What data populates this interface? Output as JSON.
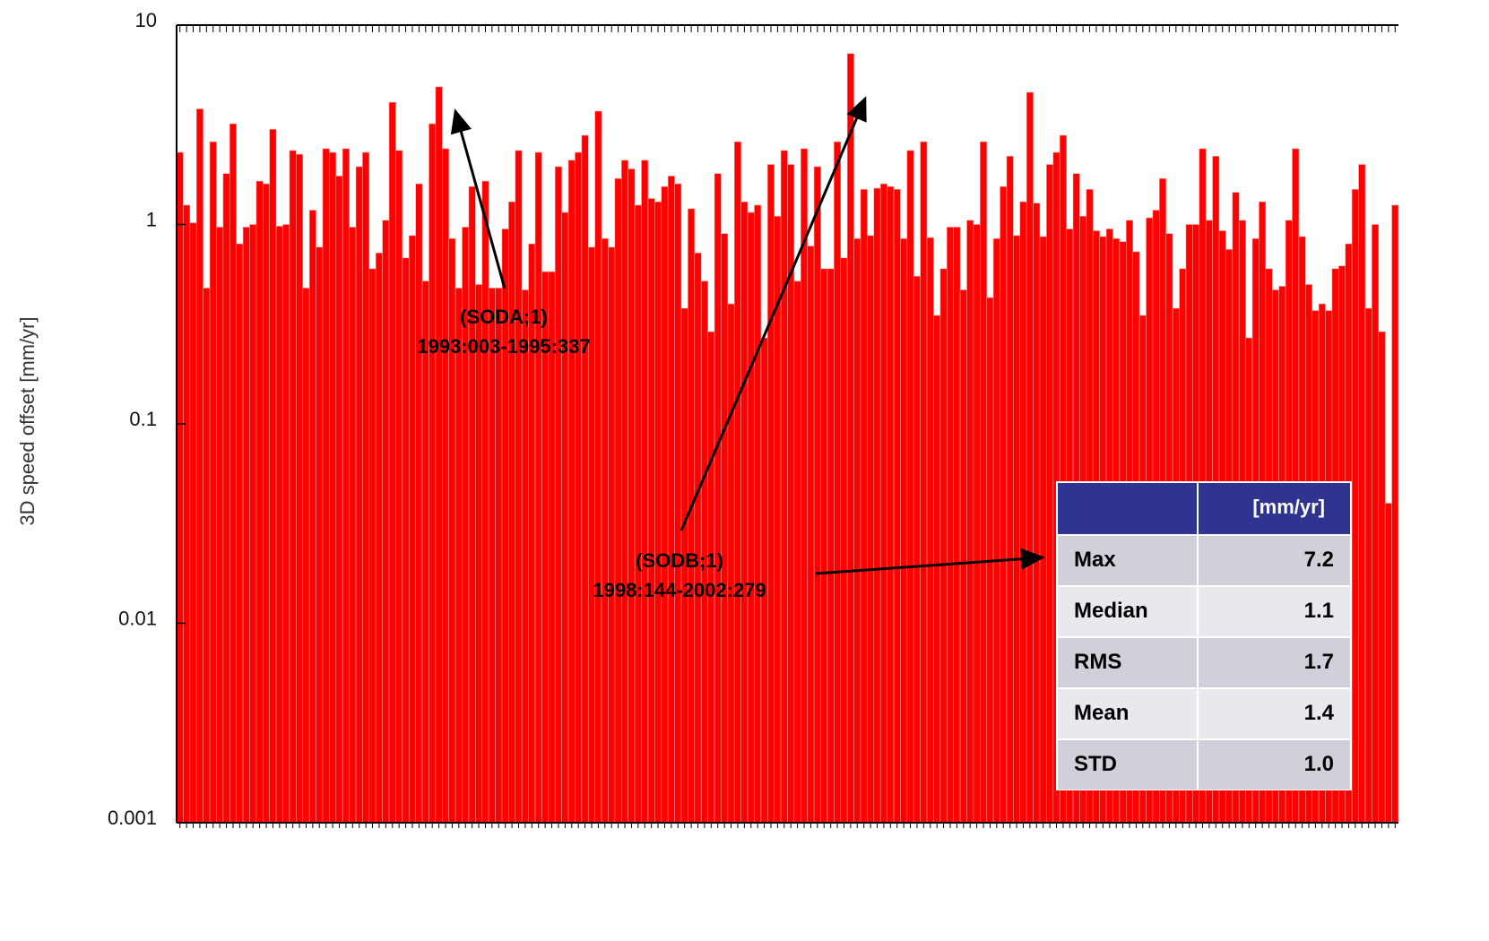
{
  "chart_data": {
    "type": "bar",
    "y_label": "3D speed offset [mm/yr]",
    "log_scale": true,
    "color": "#ff0000",
    "ylim": [
      0.001,
      10
    ],
    "yticks": [
      10,
      1,
      0.1,
      0.01,
      0.001
    ],
    "values": [
      2.3,
      1.25,
      1.02,
      3.8,
      0.48,
      2.6,
      0.97,
      1.8,
      3.2,
      0.8,
      0.97,
      1.0,
      1.65,
      1.6,
      3.0,
      0.98,
      1.0,
      2.35,
      2.25,
      0.48,
      1.18,
      0.77,
      2.4,
      2.3,
      1.75,
      2.4,
      0.97,
      1.95,
      2.3,
      0.6,
      0.72,
      1.05,
      4.1,
      2.35,
      0.68,
      0.88,
      1.6,
      0.52,
      3.2,
      4.9,
      2.4,
      0.85,
      0.48,
      0.97,
      1.55,
      0.5,
      1.65,
      0.48,
      0.48,
      0.95,
      1.3,
      2.35,
      0.47,
      0.8,
      2.3,
      0.58,
      0.58,
      1.95,
      1.15,
      2.1,
      2.3,
      2.8,
      0.77,
      3.7,
      0.85,
      0.77,
      1.7,
      2.1,
      1.9,
      1.25,
      2.1,
      1.35,
      1.3,
      1.55,
      1.75,
      1.6,
      0.38,
      1.2,
      0.72,
      0.52,
      0.29,
      1.8,
      0.9,
      0.4,
      2.6,
      1.3,
      1.15,
      1.25,
      0.27,
      2.0,
      1.1,
      2.35,
      2.0,
      0.52,
      2.4,
      0.78,
      1.95,
      0.6,
      0.6,
      2.6,
      0.68,
      7.2,
      0.85,
      1.5,
      0.88,
      1.52,
      1.6,
      1.55,
      1.5,
      0.85,
      2.35,
      0.55,
      2.6,
      0.86,
      0.35,
      0.6,
      0.97,
      0.97,
      0.47,
      1.05,
      1.0,
      2.6,
      0.43,
      0.85,
      1.55,
      2.2,
      0.88,
      1.3,
      4.6,
      1.28,
      0.87,
      2.0,
      2.3,
      2.8,
      0.95,
      1.8,
      1.1,
      1.5,
      0.93,
      0.87,
      0.95,
      0.85,
      0.82,
      1.05,
      0.73,
      0.35,
      1.08,
      1.18,
      1.7,
      0.9,
      0.38,
      0.6,
      1.0,
      1.0,
      2.4,
      1.05,
      2.2,
      0.93,
      0.75,
      1.45,
      1.05,
      0.27,
      0.85,
      1.3,
      0.6,
      0.47,
      0.49,
      1.05,
      2.4,
      0.87,
      0.5,
      0.37,
      0.4,
      0.37,
      0.6,
      0.62,
      0.8,
      1.5,
      2.0,
      0.38,
      1.0,
      0.29,
      0.04,
      1.25
    ],
    "annotations": [
      {
        "name": "(SODA;1)",
        "period": "1993:003-1995:337"
      },
      {
        "name": "(SODB;1)",
        "period": "1998:144-2002:279"
      }
    ],
    "stats_table": {
      "unit": "[mm/yr]",
      "rows": [
        [
          "Max",
          "7.2"
        ],
        [
          "Median",
          "1.1"
        ],
        [
          "RMS",
          "1.7"
        ],
        [
          "Mean",
          "1.4"
        ],
        [
          "STD",
          "1.0"
        ]
      ]
    }
  }
}
